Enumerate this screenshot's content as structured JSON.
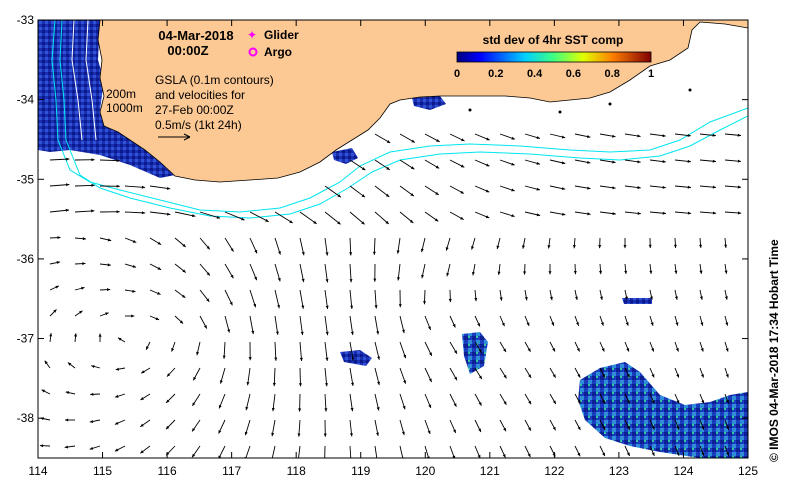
{
  "map": {
    "date": "04-Mar-2018",
    "time": "00:00Z",
    "legend": {
      "glider": "Glider",
      "argo": "Argo",
      "glider_color": "#ff00ff",
      "argo_color": "#ff00ff"
    },
    "info_lines": [
      "GSLA (0.1m contours)",
      "and velocities for",
      "27-Feb 00:00Z",
      "0.5m/s (1kt 24h)"
    ],
    "depth_labels": [
      "200m",
      "1000m"
    ],
    "colorbar": {
      "title": "std dev of 4hr SST comp",
      "ticks": [
        "0",
        "0.2",
        "0.4",
        "0.6",
        "0.8",
        "1"
      ],
      "min": 0,
      "max": 1
    },
    "credit": "© IMOS 04-Mar-2018 17:34 Hobart Time",
    "x_axis": {
      "ticks": [
        "114",
        "115",
        "116",
        "117",
        "118",
        "119",
        "120",
        "121",
        "122",
        "123",
        "124",
        "125"
      ],
      "range": [
        114,
        125
      ]
    },
    "y_axis": {
      "ticks": [
        "-33",
        "-34",
        "-35",
        "-36",
        "-37",
        "-38"
      ],
      "range": [
        -38.5,
        -33
      ]
    },
    "colors": {
      "land": "#fcc893",
      "ocean": "#ffffff",
      "bathymetry": "#00e5ee",
      "arrows": "#000000",
      "sst_low": "#0000a0"
    }
  }
}
